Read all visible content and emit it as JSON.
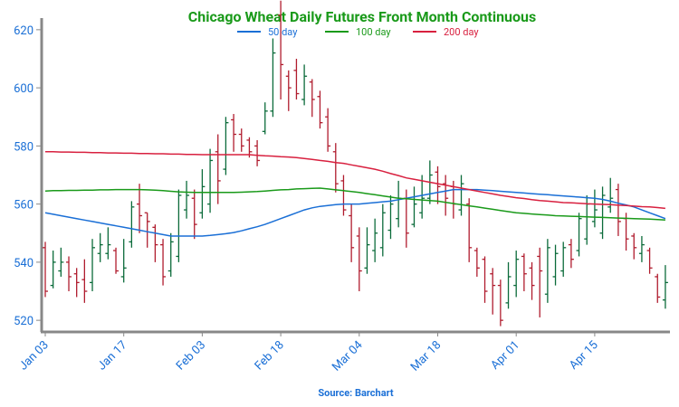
{
  "chart_data": {
    "type": "ohlc",
    "title": "Chicago Wheat Daily Futures Front Month Continuous",
    "source": "Source: Barchart",
    "categories": [
      "Jan 03",
      null,
      null,
      null,
      null,
      null,
      null,
      null,
      null,
      null,
      "Jan 17",
      null,
      null,
      null,
      null,
      null,
      null,
      null,
      null,
      null,
      "Feb 03",
      null,
      null,
      null,
      null,
      null,
      null,
      null,
      null,
      null,
      "Feb 18",
      null,
      null,
      null,
      null,
      null,
      null,
      null,
      null,
      null,
      "Mar 04",
      null,
      null,
      null,
      null,
      null,
      null,
      null,
      null,
      null,
      "Mar 18",
      null,
      null,
      null,
      null,
      null,
      null,
      null,
      null,
      null,
      "Apr 01",
      null,
      null,
      null,
      null,
      null,
      null,
      null,
      null,
      null,
      "Apr 15",
      null,
      null,
      null,
      null,
      null,
      null,
      null,
      null,
      null
    ],
    "open": [
      545,
      532,
      537,
      540,
      536,
      534,
      533,
      543,
      543,
      544,
      535,
      547,
      560,
      557,
      552,
      546,
      537,
      542,
      558,
      562,
      557,
      560,
      578,
      572,
      589,
      584,
      582,
      580,
      585,
      592,
      625,
      604,
      606,
      596,
      602,
      597,
      590,
      578,
      568,
      556,
      549,
      538,
      544,
      545,
      551,
      555,
      562,
      553,
      557,
      562,
      571,
      567,
      566,
      558,
      560,
      544,
      541,
      536,
      532,
      526,
      532,
      542,
      538,
      542,
      529,
      535,
      537,
      546,
      544,
      548,
      554,
      550,
      559,
      565,
      555,
      549,
      543,
      544,
      535,
      527
    ],
    "high": [
      547,
      544,
      545,
      542,
      538,
      541,
      548,
      550,
      552,
      545,
      548,
      561,
      567,
      557,
      553,
      548,
      550,
      565,
      568,
      565,
      572,
      579,
      584,
      590,
      591,
      586,
      583,
      582,
      595,
      617,
      630,
      606,
      610,
      608,
      603,
      599,
      593,
      581,
      570,
      560,
      552,
      552,
      555,
      560,
      563,
      568,
      565,
      566,
      570,
      575,
      573,
      570,
      568,
      570,
      562,
      545,
      542,
      538,
      534,
      540,
      544,
      543,
      540,
      545,
      548,
      546,
      547,
      548,
      557,
      563,
      565,
      566,
      569,
      567,
      557,
      550,
      549,
      545,
      536,
      539
    ],
    "low": [
      528,
      531,
      535,
      530,
      528,
      526,
      530,
      540,
      541,
      536,
      533,
      545,
      550,
      545,
      540,
      532,
      535,
      540,
      555,
      548,
      555,
      557,
      560,
      570,
      578,
      578,
      576,
      573,
      584,
      590,
      596,
      592,
      596,
      594,
      590,
      586,
      578,
      564,
      556,
      540,
      530,
      536,
      540,
      542,
      548,
      552,
      545,
      552,
      555,
      560,
      560,
      556,
      555,
      556,
      540,
      535,
      526,
      522,
      518,
      524,
      528,
      530,
      527,
      521,
      526,
      532,
      535,
      538,
      542,
      546,
      552,
      548,
      557,
      549,
      544,
      541,
      540,
      536,
      526,
      524
    ],
    "close": [
      530,
      540,
      540,
      535,
      533,
      530,
      545,
      546,
      546,
      537,
      538,
      559,
      556,
      554,
      546,
      535,
      547,
      563,
      563,
      553,
      566,
      575,
      568,
      588,
      584,
      580,
      578,
      575,
      592,
      612,
      608,
      600,
      598,
      604,
      596,
      588,
      580,
      567,
      558,
      545,
      537,
      546,
      550,
      557,
      560,
      562,
      550,
      560,
      562,
      570,
      566,
      562,
      560,
      567,
      545,
      538,
      530,
      532,
      520,
      535,
      541,
      536,
      532,
      537,
      545,
      543,
      545,
      541,
      555,
      560,
      558,
      563,
      562,
      554,
      548,
      545,
      546,
      538,
      528,
      533
    ],
    "up_color": "#0b6b3a",
    "down_color": "#b01c2e",
    "series": [
      {
        "name": "50 day",
        "color": "#1a6fd6",
        "values": [
          557,
          556.5,
          556,
          555.5,
          555,
          554.5,
          554,
          553.5,
          553,
          552.5,
          552,
          551.5,
          551,
          550.5,
          550,
          549.5,
          549,
          549,
          549,
          549,
          549,
          549.2,
          549.5,
          549.8,
          550.2,
          550.8,
          551.5,
          552.2,
          553,
          554,
          555,
          556,
          557,
          558,
          558.7,
          559.2,
          559.5,
          559.8,
          560,
          560,
          560,
          560.3,
          560.5,
          560.8,
          561,
          561.5,
          562,
          562.5,
          563,
          563.5,
          564,
          564.5,
          565,
          565,
          565,
          565,
          564.8,
          564.6,
          564.4,
          564.2,
          564,
          563.8,
          563.6,
          563.4,
          563.2,
          563,
          562.8,
          562.6,
          562.4,
          562.2,
          562,
          561.6,
          561,
          560.3,
          559.7,
          559,
          558,
          557,
          556,
          555
        ]
      },
      {
        "name": "100 day",
        "color": "#1a9a1a",
        "values": [
          564.5,
          564.6,
          564.6,
          564.7,
          564.7,
          564.8,
          564.8,
          564.9,
          564.9,
          565,
          565,
          565,
          565,
          564.9,
          564.8,
          564.6,
          564.4,
          564.2,
          564.1,
          564,
          564,
          564,
          564,
          564,
          564,
          564.1,
          564.2,
          564.3,
          564.5,
          564.7,
          564.9,
          565,
          565.2,
          565.3,
          565.4,
          565.5,
          565.2,
          564.9,
          564.6,
          564.3,
          564,
          563.6,
          563.2,
          562.8,
          562.4,
          562,
          561.8,
          561.6,
          561.4,
          561.2,
          561,
          560.6,
          560.2,
          559.8,
          559.4,
          559,
          558.6,
          558.2,
          557.8,
          557.4,
          557,
          556.8,
          556.6,
          556.4,
          556.2,
          556,
          555.9,
          555.8,
          555.7,
          555.6,
          555.5,
          555.4,
          555.3,
          555.2,
          555.1,
          555,
          554.9,
          554.8,
          554.7,
          554.5
        ]
      },
      {
        "name": "200 day",
        "color": "#d8203f",
        "values": [
          578,
          578,
          577.9,
          577.9,
          577.8,
          577.8,
          577.7,
          577.7,
          577.6,
          577.6,
          577.5,
          577.5,
          577.4,
          577.4,
          577.3,
          577.3,
          577.2,
          577.2,
          577.1,
          577.1,
          577,
          577,
          577,
          577,
          577,
          577,
          577,
          576.8,
          576.6,
          576.5,
          576.3,
          576.2,
          576,
          575.7,
          575.4,
          575,
          574.7,
          574.3,
          574,
          573.5,
          573,
          572.5,
          572,
          571.3,
          570.5,
          569.8,
          569,
          568.5,
          568,
          567.5,
          567,
          566.5,
          566,
          565.5,
          565,
          564.5,
          564,
          563.5,
          563,
          562.6,
          562.2,
          561.9,
          561.5,
          561.2,
          561,
          560.8,
          560.5,
          560.4,
          560.3,
          560.1,
          560,
          559.9,
          559.8,
          559.6,
          559.5,
          559.3,
          559.1,
          559,
          558.8,
          558.5
        ]
      }
    ],
    "ylim": [
      516,
      624
    ],
    "yticks": [
      520,
      540,
      560,
      580,
      600,
      620
    ]
  }
}
